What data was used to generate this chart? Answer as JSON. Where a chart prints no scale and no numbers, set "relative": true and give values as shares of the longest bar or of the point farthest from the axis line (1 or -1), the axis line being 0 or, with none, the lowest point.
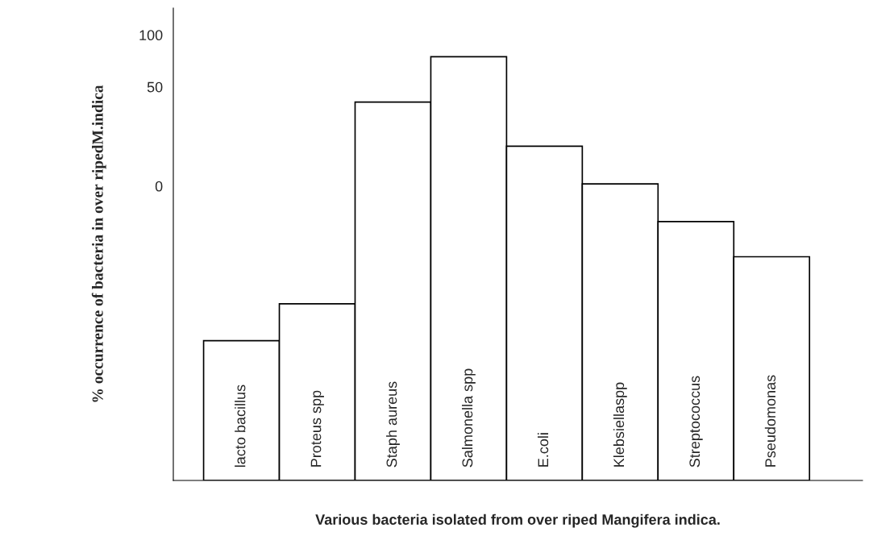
{
  "chart_data": {
    "type": "bar",
    "relative": true,
    "categories": [
      "lacto bacillus",
      "Proteus spp",
      "Staph aureus",
      "Salmonella spp",
      "E.coli",
      "Klebsiellaspp",
      "Streptococcus",
      "Pseudomonas"
    ],
    "values": [
      0.33,
      0.417,
      0.893,
      1,
      0.789,
      0.7,
      0.611,
      0.528
    ],
    "color": "#ffffff",
    "xlabel": "Various bacteria isolated from over riped Mangifera indica.",
    "ylabel": "% occurrence of bacteria in over ripedM.indica",
    "annotations": [
      "100",
      "50",
      "0"
    ],
    "legend": false
  }
}
